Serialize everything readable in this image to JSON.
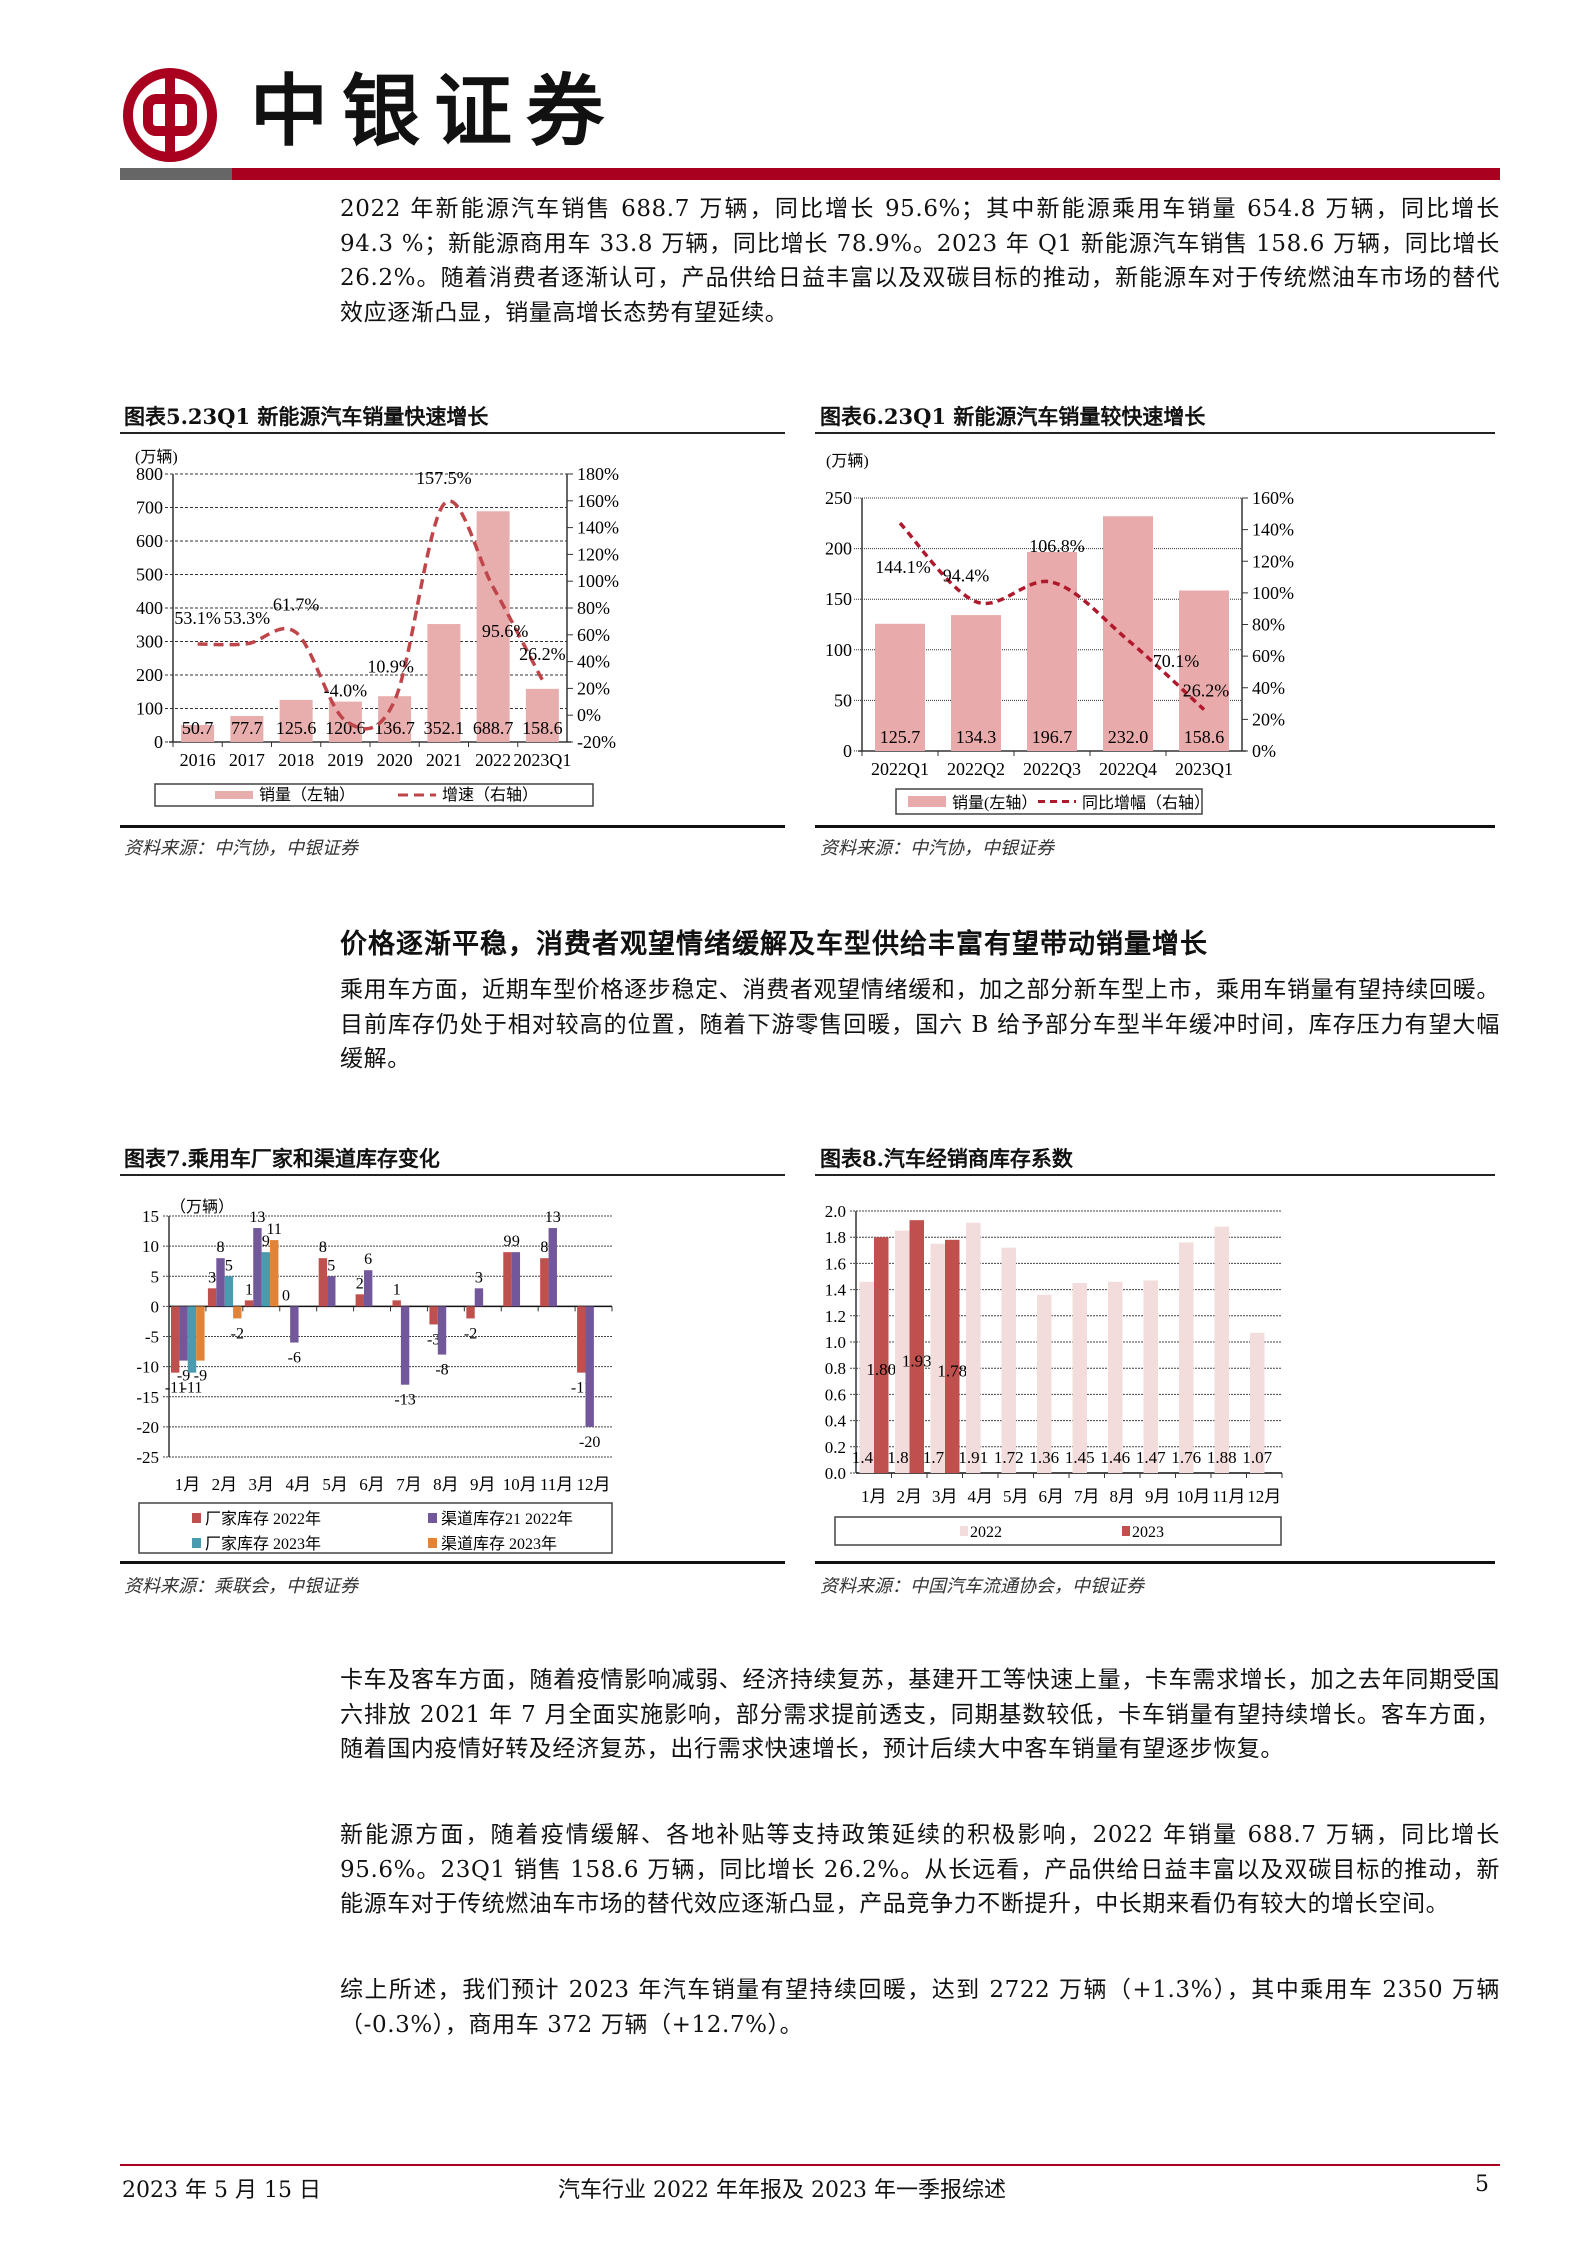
{
  "header": {
    "logo_text": "中银证券",
    "brand_color": "#a8001e",
    "gray_color": "#666666"
  },
  "paragraphs": {
    "p1": "2022 年新能源汽车销售 688.7 万辆，同比增长 95.6%；其中新能源乘用车销量 654.8 万辆，同比增长 94.3 %；新能源商用车 33.8 万辆，同比增长 78.9%。2023 年 Q1 新能源汽车销售 158.6 万辆，同比增长 26.2%。随着消费者逐渐认可，产品供给日益丰富以及双碳目标的推动，新能源车对于传统燃油车市场的替代效应逐渐凸显，销量高增长态势有望延续。",
    "heading": "价格逐渐平稳，消费者观望情绪缓解及车型供给丰富有望带动销量增长",
    "p2": "乘用车方面，近期车型价格逐步稳定、消费者观望情绪缓和，加之部分新车型上市，乘用车销量有望持续回暖。目前库存仍处于相对较高的位置，随着下游零售回暖，国六 B 给予部分车型半年缓冲时间，库存压力有望大幅缓解。",
    "p3": "卡车及客车方面，随着疫情影响减弱、经济持续复苏，基建开工等快速上量，卡车需求增长，加之去年同期受国六排放 2021 年 7 月全面实施影响，部分需求提前透支，同期基数较低，卡车销量有望持续增长。客车方面，随着国内疫情好转及经济复苏，出行需求快速增长，预计后续大中客车销量有望逐步恢复。",
    "p4": "新能源方面，随着疫情缓解、各地补贴等支持政策延续的积极影响，2022 年销量 688.7 万辆，同比增长 95.6%。23Q1 销售 158.6 万辆，同比增长 26.2%。从长远看，产品供给日益丰富以及双碳目标的推动，新能源车对于传统燃油车市场的替代效应逐渐凸显，产品竞争力不断提升，中长期来看仍有较大的增长空间。",
    "p5": "综上所述，我们预计 2023 年汽车销量有望持续回暖，达到 2722 万辆（+1.3%），其中乘用车 2350 万辆（-0.3%），商用车 372 万辆（+12.7%）。"
  },
  "sources": {
    "c5": "资料来源：中汽协，中银证券",
    "c6": "资料来源：中汽协，中银证券",
    "c7": "资料来源：乘联会，中银证券",
    "c8": "资料来源：中国汽车流通协会，中银证券"
  },
  "chart_data": [
    {
      "id": "c5",
      "type": "bar+line",
      "title": "图表5.23Q1 新能源汽车销量快速增长",
      "unit_label": "(万辆)",
      "categories": [
        "2016",
        "2017",
        "2018",
        "2019",
        "2020",
        "2021",
        "2022",
        "2023Q1"
      ],
      "series": [
        {
          "name": "销量（左轴）",
          "type": "bar",
          "axis": "left",
          "color": "#e8aeae",
          "values": [
            50.7,
            77.7,
            125.6,
            120.6,
            136.7,
            352.1,
            688.7,
            158.6
          ],
          "labels": [
            "50.7",
            "77.7",
            "125.6",
            "120.6",
            "136.7",
            "352.1",
            "688.7",
            "158.6"
          ]
        },
        {
          "name": "增速（右轴）",
          "type": "line",
          "style": "dashed",
          "axis": "right",
          "color": "#c0454a",
          "values": [
            53.1,
            53.3,
            61.7,
            -4.0,
            10.9,
            157.5,
            95.6,
            26.2
          ],
          "labels": [
            "53.1%",
            "53.3%",
            "61.7%",
            "-4.0%",
            "10.9%",
            "157.5%",
            "95.6%",
            "26.2%"
          ]
        }
      ],
      "ylim_left": [
        0,
        800
      ],
      "yticks_left": [
        "0",
        "100",
        "200",
        "300",
        "400",
        "500",
        "600",
        "700",
        "800"
      ],
      "ylim_right": [
        -20,
        180
      ],
      "yticks_right": [
        "-20%",
        "0%",
        "20%",
        "40%",
        "60%",
        "80%",
        "100%",
        "120%",
        "140%",
        "160%",
        "180%"
      ],
      "grid": true,
      "legend": "bottom"
    },
    {
      "id": "c6",
      "type": "bar+line",
      "title": "图表6.23Q1 新能源汽车销量较快速增长",
      "unit_label": "(万辆)",
      "categories": [
        "2022Q1",
        "2022Q2",
        "2022Q3",
        "2022Q4",
        "2023Q1"
      ],
      "series": [
        {
          "name": "销量(左轴）",
          "type": "bar",
          "axis": "left",
          "color": "#e8aaaa",
          "values": [
            125.7,
            134.3,
            196.7,
            232.0,
            158.6
          ],
          "labels": [
            "125.7",
            "134.3",
            "196.7",
            "232.0",
            "158.6"
          ]
        },
        {
          "name": "同比增幅（右轴）",
          "type": "line",
          "style": "dashed",
          "axis": "right",
          "color": "#b0182c",
          "values": [
            144.1,
            94.4,
            106.8,
            70.1,
            26.2
          ],
          "labels": [
            "144.1%",
            "94.4%",
            "106.8%",
            "70.1%",
            "26.2%"
          ]
        }
      ],
      "ylim_left": [
        0,
        250
      ],
      "yticks_left": [
        "0",
        "50",
        "100",
        "150",
        "200",
        "250"
      ],
      "ylim_right": [
        0,
        160
      ],
      "yticks_right": [
        "0%",
        "20%",
        "40%",
        "60%",
        "80%",
        "100%",
        "120%",
        "140%",
        "160%"
      ],
      "grid": true,
      "legend": "bottom"
    },
    {
      "id": "c7",
      "type": "bar",
      "title": "图表7.乘用车厂家和渠道库存变化",
      "unit_label": "（万辆）",
      "categories": [
        "1月",
        "2月",
        "3月",
        "4月",
        "5月",
        "6月",
        "7月",
        "8月",
        "9月",
        "10月",
        "11月",
        "12月"
      ],
      "series": [
        {
          "name": "厂家库存 2022年",
          "color": "#c0504d",
          "values": [
            -11,
            3,
            1,
            0,
            8,
            2,
            1,
            -3,
            -2,
            9,
            8,
            -11
          ]
        },
        {
          "name": "渠道库存21 2022年",
          "color": "#72589a",
          "values": [
            -9,
            8,
            13,
            -6,
            5,
            6,
            -13,
            -8,
            3,
            9,
            13,
            -20
          ]
        },
        {
          "name": "厂家库存 2023年",
          "color": "#4a9bb0",
          "values": [
            -11,
            5,
            9,
            null,
            null,
            null,
            null,
            null,
            null,
            null,
            null,
            null
          ]
        },
        {
          "name": "渠道库存 2023年",
          "color": "#e0843a",
          "values": [
            -9,
            -2,
            11,
            null,
            null,
            null,
            null,
            null,
            null,
            null,
            null,
            null
          ]
        }
      ],
      "ylim": [
        -25,
        15
      ],
      "yticks": [
        "-25",
        "-20",
        "-15",
        "-10",
        "-5",
        "0",
        "5",
        "10",
        "15"
      ],
      "grid": true,
      "legend": "bottom"
    },
    {
      "id": "c8",
      "type": "bar",
      "title": "图表8.汽车经销商库存系数",
      "categories": [
        "1月",
        "2月",
        "3月",
        "4月",
        "5月",
        "6月",
        "7月",
        "8月",
        "9月",
        "10月",
        "11月",
        "12月"
      ],
      "series": [
        {
          "name": "2022",
          "color": "#f2dcdc",
          "values": [
            1.46,
            1.85,
            1.75,
            1.91,
            1.72,
            1.36,
            1.45,
            1.46,
            1.47,
            1.76,
            1.88,
            1.07
          ],
          "labels": [
            "1.46",
            "1.85",
            "1.75",
            "1.91",
            "1.72",
            "1.36",
            "1.45",
            "1.46",
            "1.47",
            "1.76",
            "1.88",
            "1.07"
          ]
        },
        {
          "name": "2023",
          "color": "#c0504d",
          "values": [
            1.8,
            1.93,
            1.78,
            null,
            null,
            null,
            null,
            null,
            null,
            null,
            null,
            null
          ],
          "labels": [
            "1.80",
            "1.93",
            "1.78"
          ]
        }
      ],
      "ylim": [
        0,
        2.0
      ],
      "yticks": [
        "0.0",
        "0.2",
        "0.4",
        "0.6",
        "0.8",
        "1.0",
        "1.2",
        "1.4",
        "1.6",
        "1.8",
        "2.0"
      ],
      "grid": true,
      "legend": "bottom"
    }
  ],
  "footer": {
    "date": "2023 年 5 月 15 日",
    "title": "汽车行业 2022 年年报及 2023 年一季报综述",
    "page": "5"
  }
}
